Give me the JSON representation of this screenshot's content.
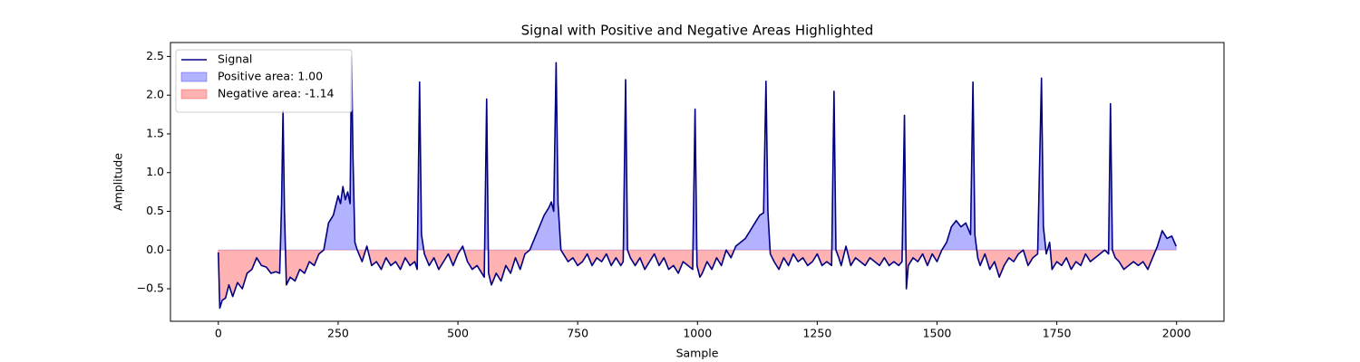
{
  "chart_data": {
    "type": "line",
    "title": "Signal with Positive and Negative Areas Highlighted",
    "xlabel": "Sample",
    "ylabel": "Amplitude",
    "x": [
      0,
      3,
      8,
      15,
      22,
      30,
      40,
      50,
      60,
      70,
      80,
      90,
      100,
      110,
      120,
      128,
      132,
      135,
      138,
      142,
      150,
      160,
      170,
      180,
      190,
      200,
      210,
      220,
      230,
      240,
      250,
      255,
      260,
      265,
      270,
      275,
      278,
      281,
      285,
      290,
      300,
      310,
      320,
      330,
      340,
      350,
      360,
      370,
      380,
      390,
      400,
      410,
      415,
      420,
      424,
      430,
      440,
      450,
      460,
      470,
      480,
      490,
      500,
      510,
      520,
      530,
      540,
      550,
      555,
      560,
      564,
      570,
      580,
      590,
      600,
      610,
      620,
      630,
      640,
      650,
      660,
      670,
      680,
      690,
      695,
      700,
      705,
      709,
      715,
      720,
      730,
      740,
      750,
      760,
      770,
      780,
      790,
      800,
      810,
      820,
      830,
      840,
      845,
      850,
      854,
      860,
      870,
      880,
      890,
      900,
      910,
      920,
      930,
      940,
      950,
      960,
      970,
      980,
      990,
      995,
      999,
      1005,
      1010,
      1020,
      1030,
      1040,
      1050,
      1060,
      1070,
      1080,
      1090,
      1100,
      1110,
      1120,
      1130,
      1138,
      1143,
      1147,
      1152,
      1160,
      1170,
      1180,
      1190,
      1200,
      1210,
      1220,
      1230,
      1240,
      1250,
      1260,
      1270,
      1280,
      1285,
      1289,
      1295,
      1300,
      1310,
      1320,
      1330,
      1340,
      1350,
      1360,
      1370,
      1380,
      1390,
      1400,
      1410,
      1420,
      1427,
      1432,
      1436,
      1440,
      1450,
      1460,
      1470,
      1480,
      1490,
      1500,
      1510,
      1520,
      1530,
      1540,
      1550,
      1560,
      1570,
      1575,
      1579,
      1585,
      1590,
      1600,
      1610,
      1620,
      1630,
      1640,
      1650,
      1660,
      1670,
      1680,
      1690,
      1700,
      1710,
      1718,
      1722,
      1728,
      1735,
      1740,
      1750,
      1760,
      1770,
      1780,
      1790,
      1800,
      1810,
      1820,
      1830,
      1840,
      1850,
      1858,
      1862,
      1866,
      1872,
      1880,
      1890,
      1900,
      1910,
      1920,
      1930,
      1940,
      1950,
      1960,
      1970,
      1980,
      1990,
      1999
    ],
    "series": [
      {
        "name": "Signal",
        "color": "#000080",
        "values": [
          -0.03,
          -0.75,
          -0.65,
          -0.62,
          -0.45,
          -0.6,
          -0.42,
          -0.5,
          -0.3,
          -0.25,
          -0.1,
          -0.2,
          -0.22,
          -0.3,
          -0.28,
          -0.3,
          0.6,
          1.8,
          0.5,
          -0.45,
          -0.35,
          -0.4,
          -0.25,
          -0.3,
          -0.15,
          -0.2,
          -0.05,
          0.0,
          0.35,
          0.45,
          0.7,
          0.6,
          0.82,
          0.65,
          0.75,
          0.6,
          2.5,
          1.2,
          0.1,
          0.0,
          -0.15,
          0.05,
          -0.2,
          -0.15,
          -0.25,
          -0.1,
          -0.2,
          -0.15,
          -0.25,
          -0.1,
          -0.2,
          -0.15,
          -0.25,
          2.17,
          0.2,
          -0.05,
          -0.2,
          -0.1,
          -0.25,
          -0.15,
          -0.05,
          -0.2,
          -0.05,
          0.05,
          -0.15,
          -0.25,
          -0.2,
          -0.3,
          -0.35,
          1.95,
          -0.3,
          -0.45,
          -0.3,
          -0.4,
          -0.2,
          -0.3,
          -0.1,
          -0.25,
          -0.05,
          0.0,
          0.15,
          0.3,
          0.45,
          0.55,
          0.62,
          0.5,
          2.42,
          0.6,
          0.0,
          -0.05,
          -0.15,
          -0.1,
          -0.2,
          -0.15,
          -0.05,
          -0.2,
          -0.1,
          -0.15,
          -0.05,
          -0.2,
          -0.1,
          -0.2,
          -0.15,
          2.2,
          0.0,
          -0.1,
          -0.2,
          -0.1,
          -0.25,
          -0.15,
          -0.05,
          -0.2,
          -0.1,
          -0.25,
          -0.2,
          -0.3,
          -0.15,
          -0.2,
          -0.25,
          1.82,
          -0.2,
          -0.35,
          -0.3,
          -0.15,
          -0.25,
          -0.1,
          -0.2,
          0.0,
          -0.1,
          0.05,
          0.1,
          0.15,
          0.25,
          0.35,
          0.45,
          0.48,
          2.18,
          0.5,
          -0.05,
          -0.15,
          -0.25,
          -0.1,
          -0.2,
          -0.05,
          -0.15,
          -0.1,
          -0.2,
          -0.15,
          -0.05,
          -0.2,
          -0.15,
          -0.2,
          2.05,
          0.0,
          -0.1,
          -0.2,
          0.05,
          -0.2,
          -0.1,
          -0.15,
          -0.2,
          -0.1,
          -0.15,
          -0.2,
          -0.1,
          -0.2,
          -0.15,
          -0.2,
          -0.15,
          1.74,
          -0.5,
          -0.2,
          -0.1,
          -0.15,
          -0.05,
          -0.2,
          -0.05,
          -0.15,
          0.0,
          0.1,
          0.3,
          0.38,
          0.3,
          0.35,
          0.2,
          2.17,
          0.2,
          -0.1,
          -0.2,
          -0.05,
          -0.25,
          -0.15,
          -0.35,
          -0.2,
          -0.1,
          -0.15,
          -0.05,
          0.0,
          -0.2,
          -0.1,
          -0.05,
          2.22,
          0.3,
          -0.05,
          0.1,
          -0.25,
          -0.15,
          -0.2,
          -0.1,
          -0.25,
          -0.15,
          -0.2,
          -0.05,
          -0.15,
          -0.1,
          -0.05,
          0.0,
          -0.05,
          1.89,
          0.0,
          -0.1,
          -0.15,
          -0.25,
          -0.2,
          -0.15,
          -0.2,
          -0.15,
          -0.25,
          -0.1,
          0.05,
          0.25,
          0.15,
          0.18,
          0.05
        ]
      }
    ],
    "fills": [
      {
        "name": "Positive area: 1.00",
        "color": "#0000ff",
        "side": "above"
      },
      {
        "name": "Negative area: -1.14",
        "color": "#ff0000",
        "side": "below"
      }
    ],
    "fill_alpha": 0.3,
    "xlim": [
      -99.95,
      2098.95
    ],
    "xticks": [
      0,
      250,
      500,
      750,
      1000,
      1250,
      1500,
      1750,
      2000
    ],
    "ylim": [
      -0.92,
      2.68
    ],
    "yticks": [
      {
        "value": -0.5,
        "label": "−0.5"
      },
      {
        "value": 0,
        "label": "0.0"
      },
      0.5,
      {
        "value": 1,
        "label": "1.0"
      },
      1.5,
      {
        "value": 2,
        "label": "2.0"
      },
      2.5
    ],
    "legend": "upper left"
  }
}
